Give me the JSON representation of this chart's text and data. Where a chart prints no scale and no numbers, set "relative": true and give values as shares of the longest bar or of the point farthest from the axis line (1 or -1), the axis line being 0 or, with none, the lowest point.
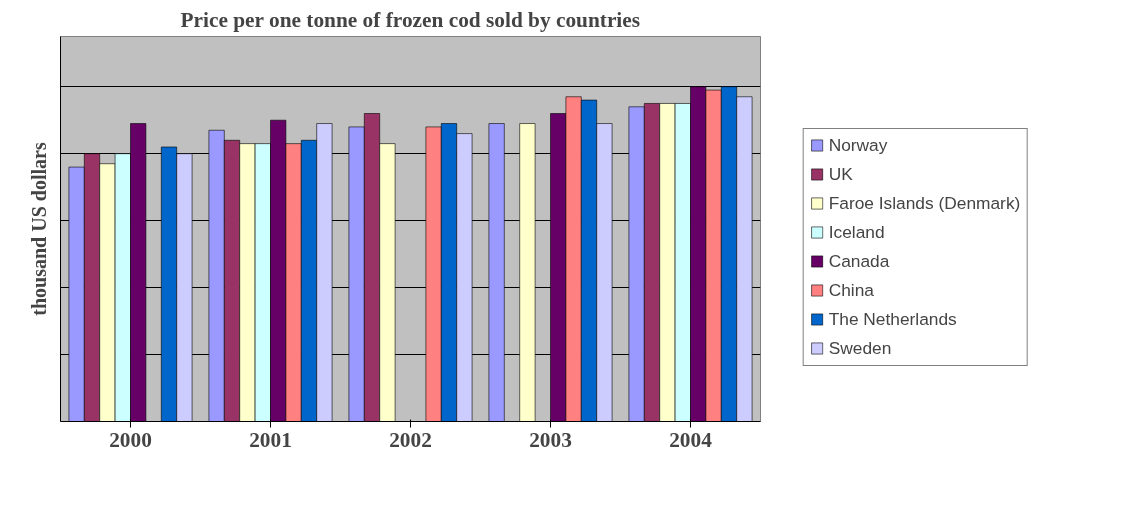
{
  "chart_data": {
    "type": "bar",
    "title": "Price per one tonne of frozen cod sold by countries",
    "ylabel": "thousand US dollars",
    "categories": [
      "2000",
      "2001",
      "2002",
      "2003",
      "2004"
    ],
    "relative": true,
    "grid": "y",
    "legend": "right",
    "series": [
      {
        "name": "Norway",
        "color": "#9999ff",
        "values": [
          0.76,
          0.87,
          0.88,
          0.89,
          0.94
        ]
      },
      {
        "name": "UK",
        "color": "#993366",
        "values": [
          0.8,
          0.84,
          0.92,
          null,
          0.95
        ]
      },
      {
        "name": "Faroe Islands (Denmark)",
        "color": "#ffffcc",
        "values": [
          0.77,
          0.83,
          0.83,
          0.89,
          0.95
        ]
      },
      {
        "name": "Iceland",
        "color": "#ccffff",
        "values": [
          0.8,
          0.83,
          null,
          null,
          0.95
        ]
      },
      {
        "name": "Canada",
        "color": "#660066",
        "values": [
          0.89,
          0.9,
          null,
          0.92,
          1
        ]
      },
      {
        "name": "China",
        "color": "#ff8080",
        "values": [
          null,
          0.83,
          0.88,
          0.97,
          0.99
        ]
      },
      {
        "name": "The Netherlands",
        "color": "#0066cc",
        "values": [
          0.82,
          0.84,
          0.89,
          0.96,
          1
        ]
      },
      {
        "name": "Sweden",
        "color": "#ccccff",
        "values": [
          0.8,
          0.89,
          0.86,
          0.89,
          0.97
        ]
      }
    ]
  }
}
